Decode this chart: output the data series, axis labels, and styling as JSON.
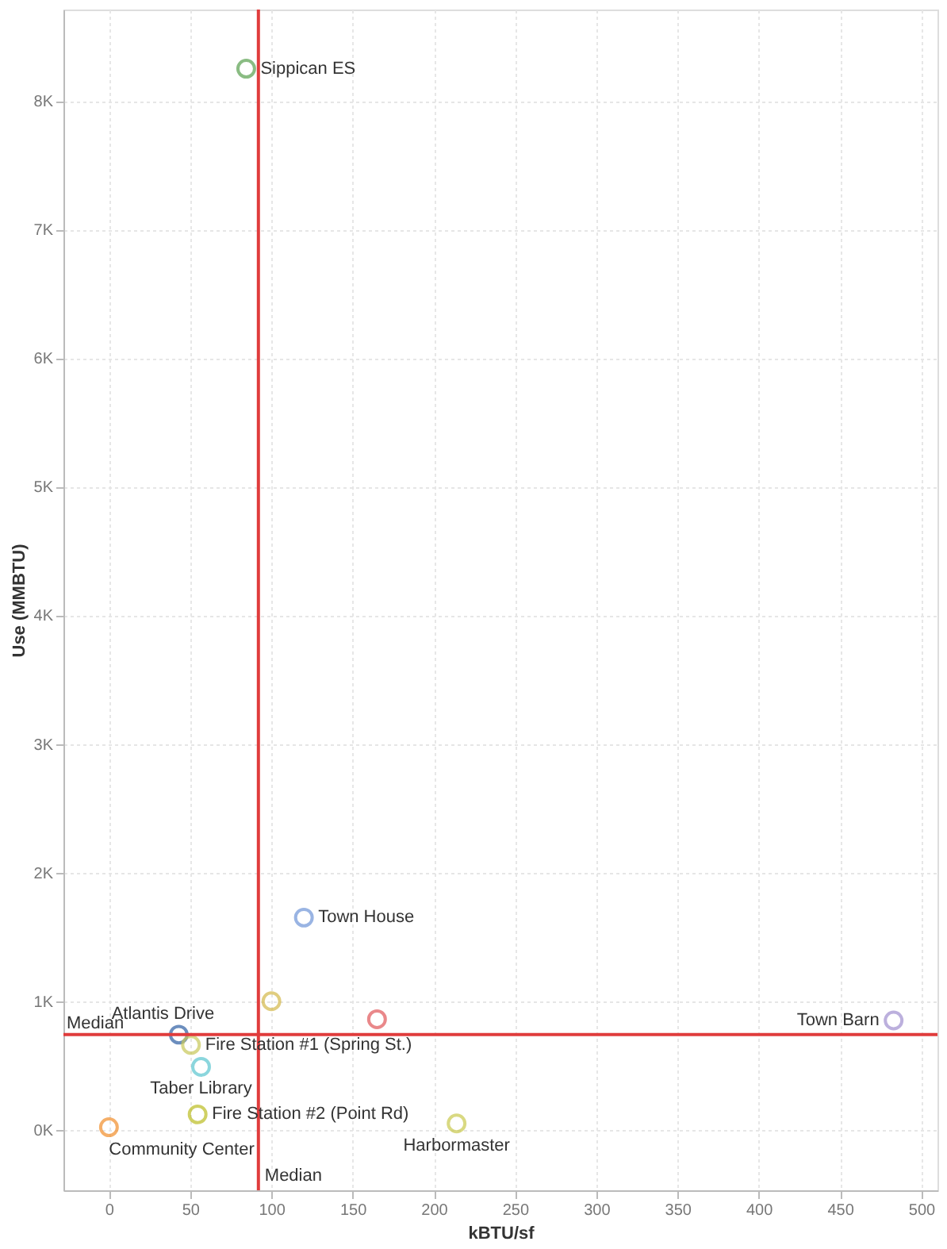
{
  "chart_data": {
    "type": "scatter",
    "xlabel": "kBTU/sf",
    "ylabel": "Use (MMBTU)",
    "x": [
      84.5,
      120,
      100,
      43,
      165,
      50.5,
      56.7,
      54.6,
      0,
      214,
      483
    ],
    "values": [
      8250,
      1650,
      1000,
      740,
      860,
      660,
      490,
      120,
      20,
      50,
      850
    ],
    "colors": [
      "#59a14f",
      "#6f95d8",
      "#d4b84a",
      "#2e5fa3",
      "#e15759",
      "#c8c85a",
      "#5bc6d0",
      "#bcbd22",
      "#f28e2b",
      "#c9c94e",
      "#a08fd0"
    ],
    "annotations": [
      {
        "text": "Sippican ES",
        "x": 84.5,
        "y": 8250
      },
      {
        "text": "Town House",
        "x": 120,
        "y": 1650
      },
      {
        "text": "Atlantis Drive",
        "x": 43,
        "y": 740
      },
      {
        "text": "Fire Station #1 (Spring St.)",
        "x": 50.5,
        "y": 660
      },
      {
        "text": "Taber Library",
        "x": 56.7,
        "y": 490
      },
      {
        "text": "Fire Station #2 (Point Rd)",
        "x": 54.6,
        "y": 120
      },
      {
        "text": "Community Center",
        "x": 0,
        "y": 20
      },
      {
        "text": "Harbormaster",
        "x": 214,
        "y": 50
      },
      {
        "text": "Town Barn",
        "x": 483,
        "y": 850
      }
    ],
    "ref_lines": [
      {
        "axis": "x",
        "value": 92,
        "label": "Median",
        "color": "#e03c3c"
      },
      {
        "axis": "y",
        "value": 740,
        "label": "Median",
        "color": "#e03c3c"
      }
    ],
    "xlim": [
      -28,
      510
    ],
    "xticks": [
      0,
      50,
      100,
      150,
      200,
      250,
      300,
      350,
      400,
      450,
      500
    ],
    "ylim": [
      -470,
      8710
    ],
    "yticks": [
      {
        "value": 0,
        "label": "0K"
      },
      {
        "value": 1000,
        "label": "1K"
      },
      {
        "value": 2000,
        "label": "2K"
      },
      {
        "value": 3000,
        "label": "3K"
      },
      {
        "value": 4000,
        "label": "4K"
      },
      {
        "value": 5000,
        "label": "5K"
      },
      {
        "value": 6000,
        "label": "6K"
      },
      {
        "value": 7000,
        "label": "7K"
      },
      {
        "value": 8000,
        "label": "8K"
      }
    ],
    "grid": true,
    "marker": "circle"
  }
}
